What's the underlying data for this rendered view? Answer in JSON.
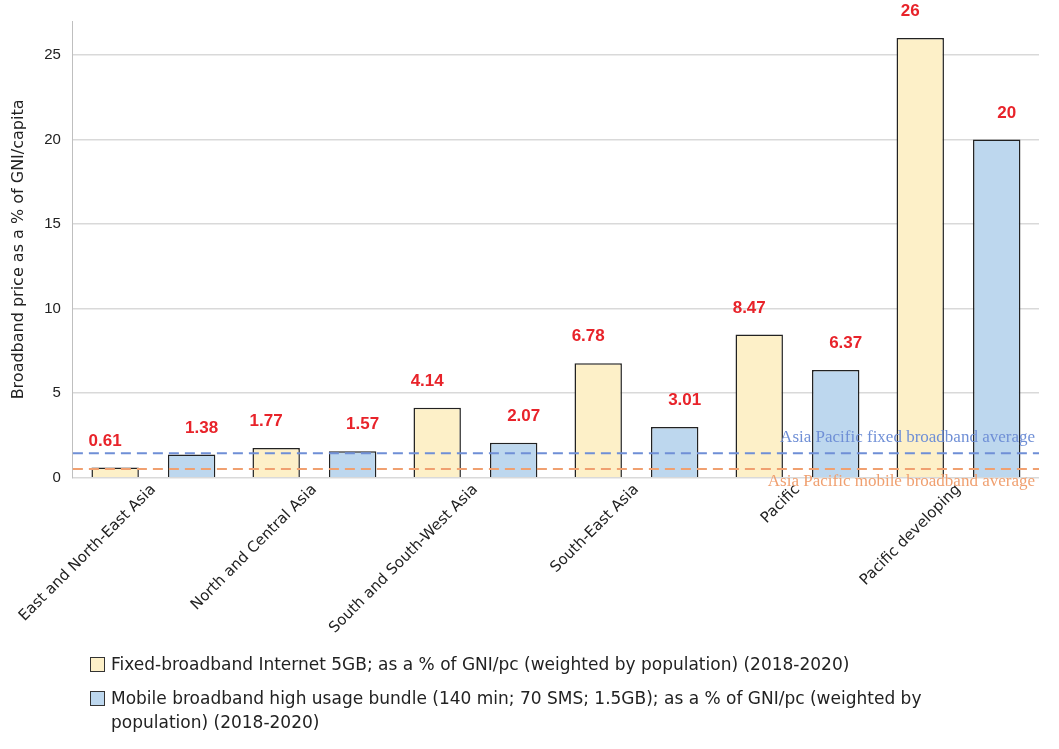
{
  "chart_data": {
    "type": "bar",
    "ylabel": "Broadband price as a % of GNI/capita",
    "categories": [
      "East and North-East Asia",
      "North and Central Asia",
      "South and South-West Asia",
      "South-East Asia",
      "Pacific",
      "Pacific developing"
    ],
    "series": [
      {
        "name": "Fixed-broadband Internet 5GB; as a % of GNI/pc (weighted by population) (2018-2020)",
        "color": "#fdf0c8",
        "values": [
          0.61,
          1.77,
          4.14,
          6.78,
          8.47,
          26
        ]
      },
      {
        "name": "Mobile broadband high usage bundle (140 min; 70 SMS; 1.5GB); as a % of GNI/pc (weighted by population) (2018-2020)",
        "color": "#bdd7ee",
        "values": [
          1.38,
          1.57,
          2.07,
          3.01,
          6.37,
          20
        ]
      }
    ],
    "ylim": [
      0,
      27
    ],
    "yticks": [
      0,
      5,
      10,
      15,
      20,
      25
    ],
    "grid": "y",
    "legend": "bottom",
    "data_labels": true,
    "ref_lines": [
      {
        "axis": "y",
        "value": 1.45,
        "label": "Asia Pacific fixed broadband average",
        "color": "#6f8fd6",
        "line_style": "dashed"
      },
      {
        "axis": "y",
        "value": 0.53,
        "label": "Asia Pacific mobile broadband average",
        "color": "#f0a070",
        "line_style": "dashed"
      }
    ]
  }
}
